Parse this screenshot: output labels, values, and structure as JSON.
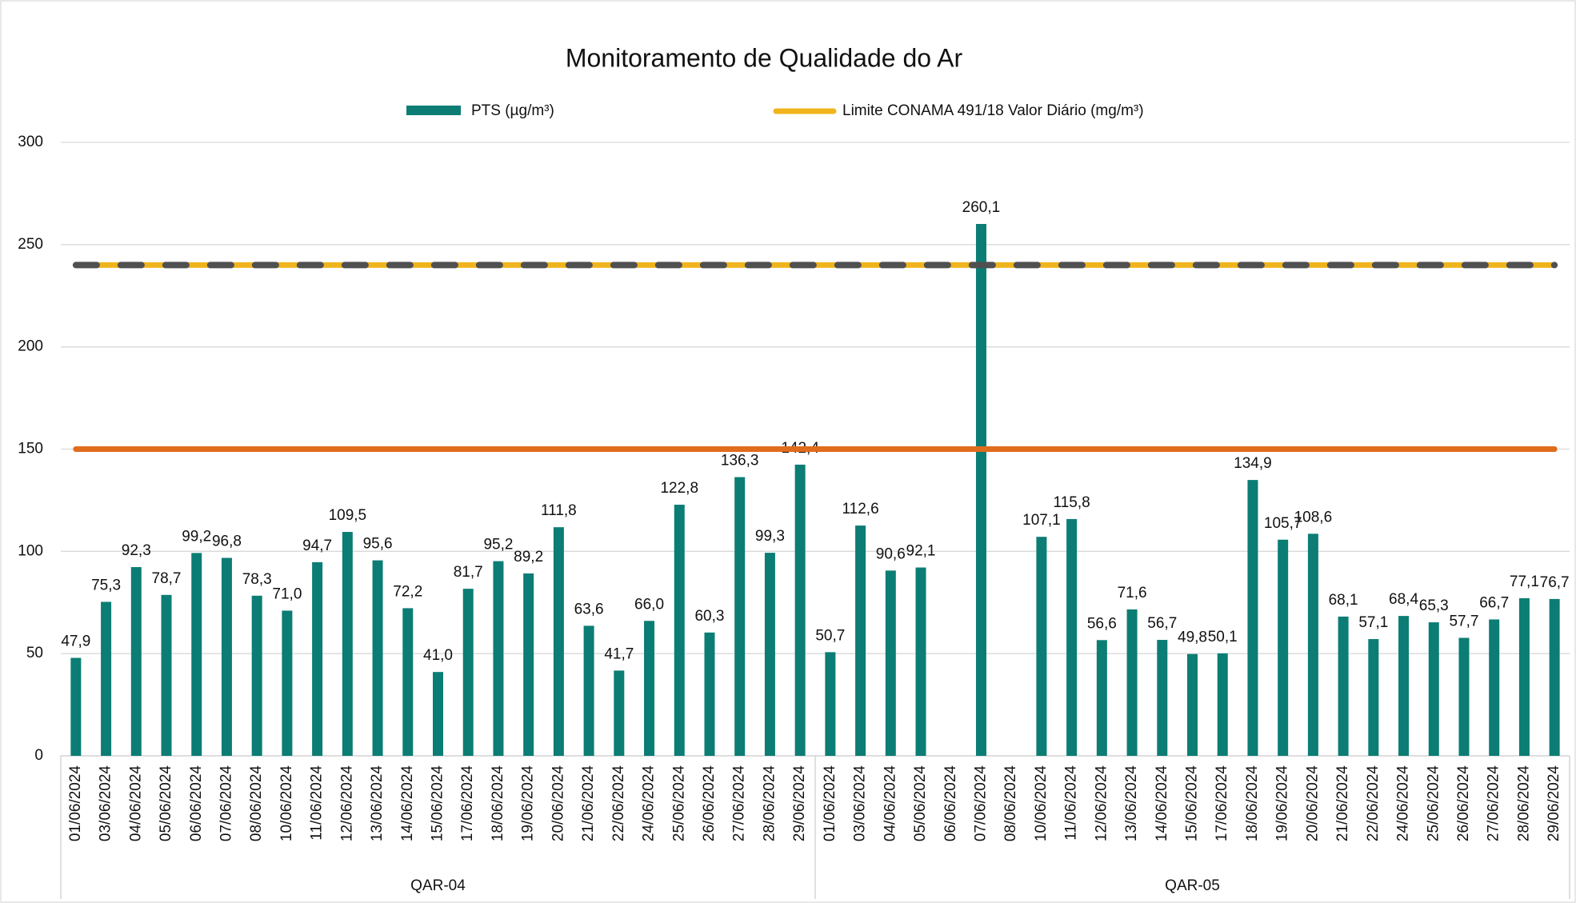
{
  "chart_data": {
    "type": "bar",
    "title": "Monitoramento de Qualidade do Ar",
    "groups": [
      {
        "name": "QAR-04",
        "categories": [
          "01/06/2024",
          "03/06/2024",
          "04/06/2024",
          "05/06/2024",
          "06/06/2024",
          "07/06/2024",
          "08/06/2024",
          "10/06/2024",
          "11/06/2024",
          "12/06/2024",
          "13/06/2024",
          "14/06/2024",
          "15/06/2024",
          "17/06/2024",
          "18/06/2024",
          "19/06/2024",
          "20/06/2024",
          "21/06/2024",
          "22/06/2024",
          "24/06/2024",
          "25/06/2024",
          "26/06/2024",
          "27/06/2024",
          "28/06/2024",
          "29/06/2024"
        ],
        "values": [
          47.9,
          75.3,
          92.3,
          78.7,
          99.2,
          96.8,
          78.3,
          71.0,
          94.7,
          109.5,
          95.6,
          72.2,
          41.0,
          81.7,
          95.2,
          89.2,
          111.8,
          63.6,
          41.7,
          66.0,
          122.8,
          60.3,
          136.3,
          99.3,
          142.4
        ],
        "value_labels": [
          "47,9",
          "75,3",
          "92,3",
          "78,7",
          "99,2",
          "96,8",
          "78,3",
          "71,0",
          "94,7",
          "109,5",
          "95,6",
          "72,2",
          "41,0",
          "81,7",
          "95,2",
          "89,2",
          "111,8",
          "63,6",
          "41,7",
          "66,0",
          "122,8",
          "60,3",
          "136,3",
          "99,3",
          "142,4"
        ]
      },
      {
        "name": "QAR-05",
        "categories": [
          "01/06/2024",
          "03/06/2024",
          "04/06/2024",
          "05/06/2024",
          "06/06/2024",
          "07/06/2024",
          "08/06/2024",
          "10/06/2024",
          "11/06/2024",
          "12/06/2024",
          "13/06/2024",
          "14/06/2024",
          "15/06/2024",
          "17/06/2024",
          "18/06/2024",
          "19/06/2024",
          "20/06/2024",
          "21/06/2024",
          "22/06/2024",
          "24/06/2024",
          "25/06/2024",
          "26/06/2024",
          "27/06/2024",
          "28/06/2024",
          "29/06/2024"
        ],
        "values": [
          50.7,
          112.6,
          90.6,
          92.1,
          null,
          260.1,
          null,
          107.1,
          115.8,
          56.6,
          71.6,
          56.7,
          49.8,
          50.1,
          134.9,
          105.7,
          108.6,
          68.1,
          57.1,
          68.4,
          65.3,
          57.7,
          66.7,
          77.1,
          76.7
        ],
        "value_labels": [
          "50,7",
          "112,6",
          "90,6",
          "92,1",
          null,
          "260,1",
          null,
          "107,1",
          "115,8",
          "56,6",
          "71,6",
          "56,7",
          "49,8",
          "50,1",
          "134,9",
          "105,7",
          "108,6",
          "68,1",
          "57,1",
          "68,4",
          "65,3",
          "57,7",
          "66,7",
          "77,1",
          "76,7"
        ]
      }
    ],
    "bar_series": {
      "name": "PTS (µg/m³)",
      "color": "#0b7d74"
    },
    "reference_lines": [
      {
        "name": "Limite CONAMA 491/18  Valor Diário (mg/m³)",
        "value": 240,
        "color": "#f0b41c",
        "dash_color": "#505050"
      },
      {
        "value": 150,
        "color": "#e06c1c"
      }
    ],
    "ylim": [
      0,
      300
    ],
    "yticks": [
      0,
      50,
      100,
      150,
      200,
      250,
      300
    ],
    "grid": true
  }
}
